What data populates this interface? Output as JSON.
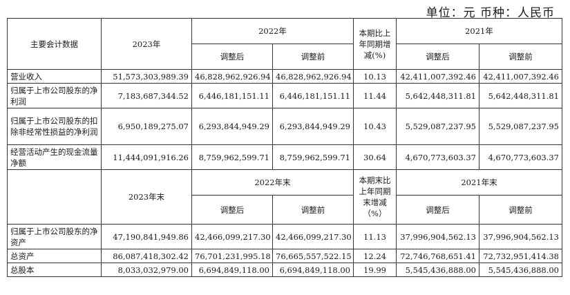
{
  "unit_label": "单位：元  币种：人民币",
  "header1": {
    "item_col": "主要会计数据",
    "year_current": "2023年",
    "year_prev": "2022年",
    "change_col": "本期比上年同期增减(%)",
    "year_prev2": "2021年",
    "adjusted_after": "调整后",
    "adjusted_before": "调整前"
  },
  "rows1": [
    {
      "label": "营业收入",
      "v2023": "51,573,303,989.39",
      "v2022_after": "46,828,962,926.94",
      "v2022_before": "46,828,962,926.94",
      "change": "10.13",
      "v2021_after": "42,411,007,392.46",
      "v2021_before": "42,411,007,392.46"
    },
    {
      "label": "归属于上市公司股东的净利润",
      "v2023": "7,183,687,344.52",
      "v2022_after": "6,446,181,151.11",
      "v2022_before": "6,446,181,151.11",
      "change": "11.44",
      "v2021_after": "5,642,448,311.81",
      "v2021_before": "5,642,448,311.81"
    },
    {
      "label": "归属于上市公司股东的扣除非经常性损益的净利润",
      "v2023": "6,950,189,275.07",
      "v2022_after": "6,293,844,949.29",
      "v2022_before": "6,293,844,949.29",
      "change": "10.43",
      "v2021_after": "5,529,087,237.95",
      "v2021_before": "5,529,087,237.95"
    },
    {
      "label": "经营活动产生的现金流量净额",
      "v2023": "11,444,091,916.26",
      "v2022_after": "8,759,962,599.71",
      "v2022_before": "8,759,962,599.71",
      "change": "30.64",
      "v2021_after": "4,670,773,603.37",
      "v2021_before": "4,670,773,603.37"
    }
  ],
  "header2": {
    "year_current": "2023年末",
    "year_prev": "2022年末",
    "change_col": "本期末比上年同期末增减（%）",
    "year_prev2": "2021年末",
    "adjusted_after": "调整后",
    "adjusted_before": "调整前"
  },
  "rows2": [
    {
      "label": "归属于上市公司股东的净资产",
      "v2023": "47,190,841,949.86",
      "v2022_after": "42,466,099,217.30",
      "v2022_before": "42,466,099,217.30",
      "change": "11.13",
      "v2021_after": "37,996,904,562.13",
      "v2021_before": "37,996,904,562.13"
    },
    {
      "label": "总资产",
      "v2023": "86,087,418,302.42",
      "v2022_after": "76,701,231,995.18",
      "v2022_before": "76,665,557,522.15",
      "change": "12.24",
      "v2021_after": "72,746,768,651.41",
      "v2021_before": "72,732,951,414.38"
    },
    {
      "label": "总股本",
      "v2023": "8,033,032,979.00",
      "v2022_after": "6,694,849,118.00",
      "v2022_before": "6,694,849,118.00",
      "change": "19.99",
      "v2021_after": "5,545,436,888.00",
      "v2021_before": "5,545,436,888.00"
    }
  ]
}
